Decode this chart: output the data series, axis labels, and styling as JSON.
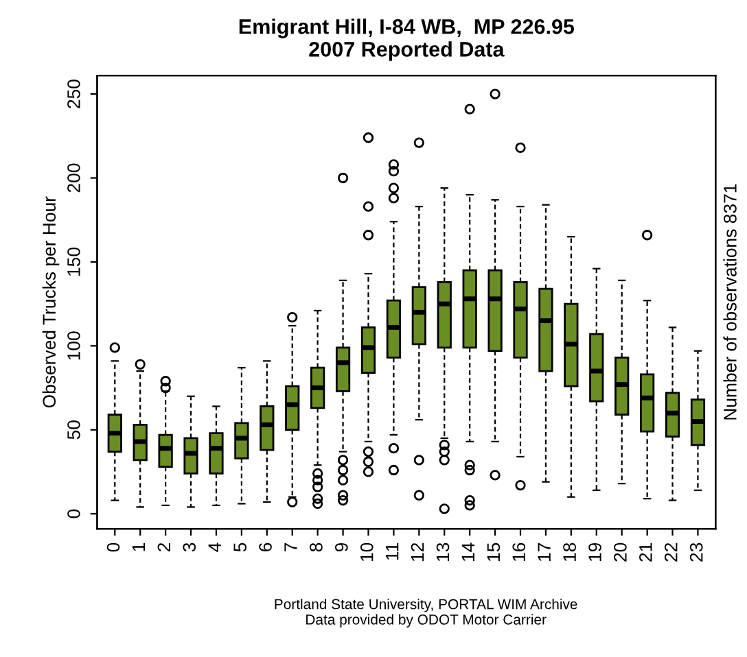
{
  "chart_data": {
    "type": "box",
    "title": "Emigrant Hill, I-84 WB,  MP 226.95\n2007 Reported Data",
    "ylabel": "Observed Trucks per Hour",
    "y2label": "Number of observations 8371",
    "annotations": [
      "Portland State University, PORTAL WIM Archive\nData provided by ODOT Motor Carrier"
    ],
    "categories": [
      "0",
      "1",
      "2",
      "3",
      "4",
      "5",
      "6",
      "7",
      "8",
      "9",
      "10",
      "11",
      "12",
      "13",
      "14",
      "15",
      "16",
      "17",
      "18",
      "19",
      "20",
      "21",
      "22",
      "23"
    ],
    "color": "#6b8e23",
    "ylim": [
      -9,
      261
    ],
    "yticks": [
      0,
      50,
      100,
      150,
      200,
      250
    ],
    "line_style": "dashed",
    "marker": "circle",
    "boxes": [
      {
        "low": 8,
        "q1": 37,
        "median": 48,
        "q3": 59,
        "high": 91,
        "outliers": [
          99
        ]
      },
      {
        "low": 4,
        "q1": 32,
        "median": 43,
        "q3": 53,
        "high": 85,
        "outliers": [
          89
        ]
      },
      {
        "low": 5,
        "q1": 28,
        "median": 39,
        "q3": 47,
        "high": 73,
        "outliers": [
          75,
          79
        ]
      },
      {
        "low": 4,
        "q1": 24,
        "median": 36,
        "q3": 45,
        "high": 70
      },
      {
        "low": 5,
        "q1": 24,
        "median": 39,
        "q3": 48,
        "high": 64
      },
      {
        "low": 6,
        "q1": 33,
        "median": 45,
        "q3": 54,
        "high": 87
      },
      {
        "low": 7,
        "q1": 38,
        "median": 53,
        "q3": 64,
        "high": 91
      },
      {
        "low": 10,
        "q1": 50,
        "median": 65,
        "q3": 76,
        "high": 112,
        "outliers": [
          117,
          7
        ]
      },
      {
        "low": 29,
        "q1": 63,
        "median": 75,
        "q3": 87,
        "high": 121,
        "outliers": [
          24,
          20,
          16,
          9,
          6
        ]
      },
      {
        "low": 37,
        "q1": 73,
        "median": 90,
        "q3": 99,
        "high": 139,
        "outliers": [
          200,
          32,
          26,
          20,
          11,
          8
        ]
      },
      {
        "low": 43,
        "q1": 84,
        "median": 99,
        "q3": 111,
        "high": 143,
        "outliers": [
          224,
          183,
          166,
          37,
          31,
          25
        ]
      },
      {
        "low": 47,
        "q1": 93,
        "median": 111,
        "q3": 127,
        "high": 174,
        "outliers": [
          208,
          204,
          194,
          188,
          39,
          26
        ]
      },
      {
        "low": 56,
        "q1": 101,
        "median": 120,
        "q3": 135,
        "high": 183,
        "outliers": [
          221,
          32,
          11
        ]
      },
      {
        "low": 45,
        "q1": 99,
        "median": 125,
        "q3": 138,
        "high": 194,
        "outliers": [
          41,
          37,
          32,
          3
        ]
      },
      {
        "low": 43,
        "q1": 99,
        "median": 128,
        "q3": 145,
        "high": 190,
        "outliers": [
          241,
          29,
          26,
          8,
          5
        ]
      },
      {
        "low": 43,
        "q1": 97,
        "median": 128,
        "q3": 145,
        "high": 187,
        "outliers": [
          250,
          23
        ]
      },
      {
        "low": 34,
        "q1": 93,
        "median": 122,
        "q3": 138,
        "high": 183,
        "outliers": [
          218,
          17
        ]
      },
      {
        "low": 19,
        "q1": 85,
        "median": 115,
        "q3": 134,
        "high": 184
      },
      {
        "low": 10,
        "q1": 76,
        "median": 101,
        "q3": 125,
        "high": 165
      },
      {
        "low": 14,
        "q1": 67,
        "median": 85,
        "q3": 107,
        "high": 146
      },
      {
        "low": 18,
        "q1": 59,
        "median": 77,
        "q3": 93,
        "high": 139
      },
      {
        "low": 9,
        "q1": 49,
        "median": 69,
        "q3": 83,
        "high": 127,
        "outliers": [
          166
        ]
      },
      {
        "low": 8,
        "q1": 46,
        "median": 60,
        "q3": 72,
        "high": 111
      },
      {
        "low": 14,
        "q1": 41,
        "median": 55,
        "q3": 68,
        "high": 97
      }
    ]
  }
}
